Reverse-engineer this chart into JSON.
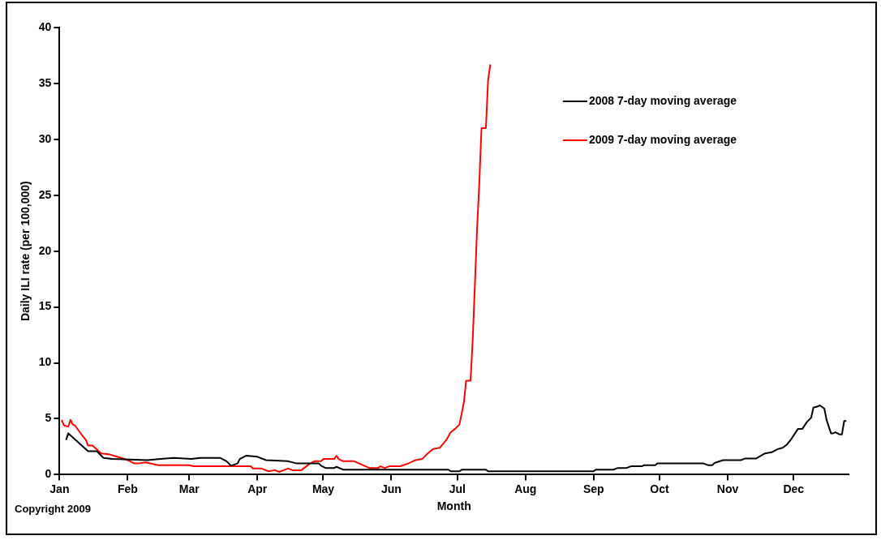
{
  "chart_data": {
    "type": "line",
    "xlabel": "Month",
    "ylabel": "Daily ILI rate (per 100,000)",
    "xlim": [
      "--01-01",
      "--12-26"
    ],
    "ylim": [
      0,
      40
    ],
    "xticks": [
      {
        "value": "--01-01",
        "label": "Jan"
      },
      {
        "value": "--02-01",
        "label": "Feb"
      },
      {
        "value": "--03-01",
        "label": "Mar"
      },
      {
        "value": "--04-01",
        "label": "Apr"
      },
      {
        "value": "--05-01",
        "label": "May"
      },
      {
        "value": "--06-01",
        "label": "Jun"
      },
      {
        "value": "--07-01",
        "label": "Jul"
      },
      {
        "value": "--08-01",
        "label": "Aug"
      },
      {
        "value": "--09-01",
        "label": "Sep"
      },
      {
        "value": "--10-01",
        "label": "Oct"
      },
      {
        "value": "--11-01",
        "label": "Nov"
      },
      {
        "value": "--12-01",
        "label": "Dec"
      }
    ],
    "yticks": [
      0,
      5,
      10,
      15,
      20,
      25,
      30,
      35,
      40
    ],
    "grid": false,
    "legend": "top right",
    "marker": "none",
    "line_style": "solid",
    "annotations": [
      "Copyright 2009"
    ],
    "series": [
      {
        "name": "2008 7-day moving average",
        "color": "#000000",
        "x": [
          "--01-04",
          "--01-05",
          "--01-10",
          "--01-14",
          "--01-18",
          "--01-21",
          "--01-25",
          "--02-10",
          "--02-16",
          "--02-22",
          "--03-02",
          "--03-06",
          "--03-15",
          "--03-18",
          "--03-20",
          "--03-23",
          "--03-24",
          "--03-27",
          "--04-01",
          "--04-05",
          "--04-15",
          "--04-19",
          "--04-29",
          "--04-30",
          "--05-02",
          "--05-06",
          "--05-07",
          "--05-10",
          "--06-27",
          "--06-28",
          "--07-02",
          "--07-03",
          "--07-14",
          "--07-15",
          "--09-01",
          "--09-02",
          "--09-10",
          "--09-12",
          "--09-16",
          "--09-18",
          "--09-23",
          "--09-24",
          "--09-29",
          "--09-30",
          "--10-21",
          "--10-23",
          "--10-25",
          "--10-26",
          "--10-30",
          "--11-07",
          "--11-09",
          "--11-14",
          "--11-18",
          "--11-21",
          "--11-24",
          "--11-26",
          "--11-28",
          "--11-30",
          "--12-03",
          "--12-05",
          "--12-07",
          "--12-09",
          "--12-10",
          "--12-12",
          "--12-13",
          "--12-15",
          "--12-16",
          "--12-18",
          "--12-19",
          "--12-20",
          "--12-22",
          "--12-23",
          "--12-24",
          "--12-25"
        ],
        "values": [
          3.1,
          3.7,
          2.8,
          2.1,
          2.1,
          1.5,
          1.4,
          1.3,
          1.4,
          1.5,
          1.4,
          1.5,
          1.5,
          1.2,
          0.8,
          1.0,
          1.4,
          1.7,
          1.6,
          1.3,
          1.2,
          1.0,
          1.0,
          0.8,
          0.6,
          0.6,
          0.7,
          0.45,
          0.45,
          0.3,
          0.3,
          0.45,
          0.45,
          0.3,
          0.3,
          0.45,
          0.45,
          0.6,
          0.6,
          0.75,
          0.75,
          0.85,
          0.85,
          1.0,
          1.0,
          0.85,
          0.85,
          1.05,
          1.3,
          1.3,
          1.45,
          1.45,
          1.9,
          2.0,
          2.3,
          2.4,
          2.7,
          3.2,
          4.1,
          4.1,
          4.7,
          5.1,
          6.0,
          6.1,
          6.2,
          5.9,
          4.9,
          3.7,
          3.7,
          3.8,
          3.6,
          3.6,
          4.8,
          4.8
        ]
      },
      {
        "name": "2009 7-day moving average",
        "color": "#ff0000",
        "x": [
          "--01-02",
          "--01-03",
          "--01-05",
          "--01-06",
          "--01-07",
          "--01-08",
          "--01-11",
          "--01-13",
          "--01-14",
          "--01-16",
          "--01-20",
          "--01-24",
          "--01-29",
          "--02-01",
          "--02-04",
          "--02-06",
          "--02-09",
          "--02-15",
          "--03-01",
          "--03-03",
          "--03-29",
          "--03-30",
          "--04-03",
          "--04-06",
          "--04-09",
          "--04-11",
          "--04-13",
          "--04-15",
          "--04-17",
          "--04-21",
          "--04-25",
          "--04-27",
          "--04-30",
          "--05-01",
          "--05-06",
          "--05-07",
          "--05-08",
          "--05-10",
          "--05-15",
          "--05-19",
          "--05-22",
          "--05-26",
          "--05-27",
          "--05-29",
          "--05-31",
          "--06-05",
          "--06-08",
          "--06-12",
          "--06-15",
          "--06-17",
          "--06-20",
          "--06-23",
          "--06-26",
          "--06-28",
          "--06-30",
          "--07-02",
          "--07-03",
          "--07-04",
          "--07-05",
          "--07-07",
          "--07-08",
          "--07-09",
          "--07-10",
          "--07-11",
          "--07-12",
          "--07-14",
          "--07-15",
          "--07-16"
        ],
        "values": [
          4.9,
          4.4,
          4.3,
          4.9,
          4.5,
          4.4,
          3.6,
          3.1,
          2.6,
          2.6,
          1.9,
          1.8,
          1.5,
          1.3,
          1.0,
          1.0,
          1.1,
          0.85,
          0.85,
          0.75,
          0.75,
          0.55,
          0.55,
          0.3,
          0.4,
          0.25,
          0.4,
          0.55,
          0.4,
          0.4,
          1.0,
          1.2,
          1.2,
          1.4,
          1.4,
          1.7,
          1.4,
          1.2,
          1.2,
          0.85,
          0.6,
          0.6,
          0.75,
          0.6,
          0.75,
          0.75,
          0.95,
          1.3,
          1.4,
          1.8,
          2.3,
          2.4,
          3.1,
          3.8,
          4.1,
          4.5,
          5.5,
          6.5,
          8.4,
          8.4,
          12.1,
          17.0,
          22.1,
          26.1,
          31.0,
          31.0,
          35.3,
          36.7
        ]
      }
    ]
  }
}
